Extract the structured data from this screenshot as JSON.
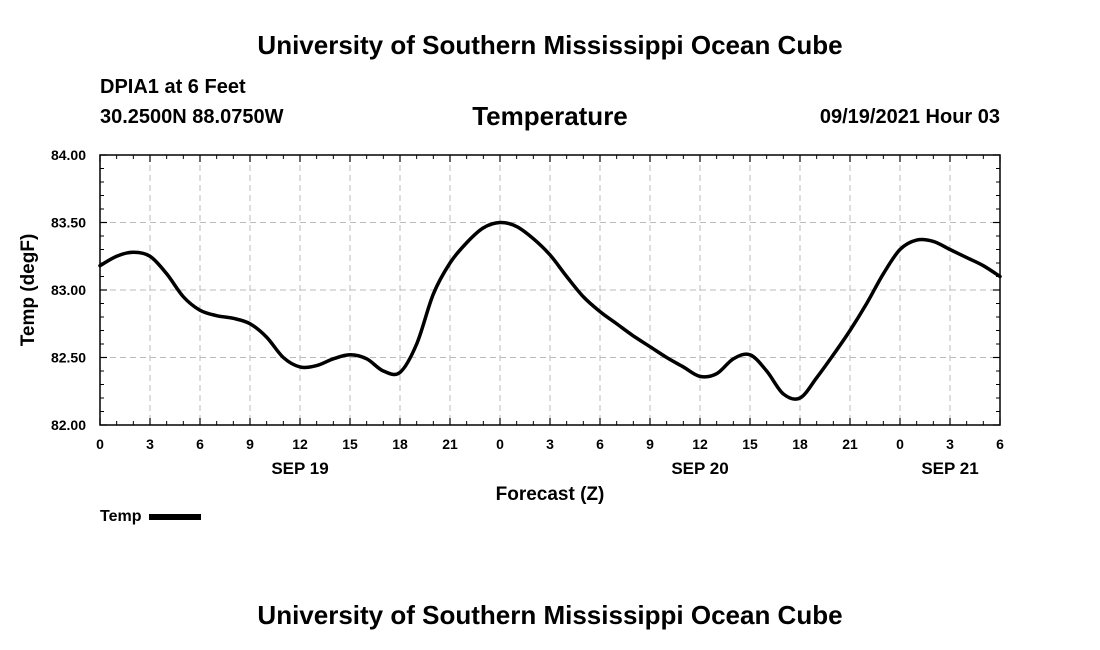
{
  "header": {
    "top_title": "University of Southern Mississippi Ocean Cube",
    "station": "DPIA1 at 6 Feet",
    "coords": "30.2500N  88.0750W",
    "datetime": "09/19/2021 Hour 03"
  },
  "footer": {
    "bottom_title": "University of Southern Mississippi Ocean Cube"
  },
  "legend": {
    "label": "Temp"
  },
  "colors": {
    "line": "#000000",
    "grid": "#bbbbbb"
  },
  "chart_data": {
    "type": "line",
    "title": "Temperature",
    "xlabel": "Forecast (Z)",
    "ylabel": "Temp (degF)",
    "xlim": [
      0,
      54
    ],
    "ylim": [
      82.0,
      84.0
    ],
    "grid": true,
    "legend_position": "bottom-left",
    "x_ticks": [
      {
        "value": 0,
        "label": "0"
      },
      {
        "value": 3,
        "label": "3"
      },
      {
        "value": 6,
        "label": "6"
      },
      {
        "value": 9,
        "label": "9"
      },
      {
        "value": 12,
        "label": "12"
      },
      {
        "value": 15,
        "label": "15"
      },
      {
        "value": 18,
        "label": "18"
      },
      {
        "value": 21,
        "label": "21"
      },
      {
        "value": 24,
        "label": "0"
      },
      {
        "value": 27,
        "label": "3"
      },
      {
        "value": 30,
        "label": "6"
      },
      {
        "value": 33,
        "label": "9"
      },
      {
        "value": 36,
        "label": "12"
      },
      {
        "value": 39,
        "label": "15"
      },
      {
        "value": 42,
        "label": "18"
      },
      {
        "value": 45,
        "label": "21"
      },
      {
        "value": 48,
        "label": "0"
      },
      {
        "value": 51,
        "label": "3"
      },
      {
        "value": 54,
        "label": "6"
      }
    ],
    "y_ticks": [
      {
        "value": 82.0,
        "label": "82.00"
      },
      {
        "value": 82.5,
        "label": "82.50"
      },
      {
        "value": 83.0,
        "label": "83.00"
      },
      {
        "value": 83.5,
        "label": "83.50"
      },
      {
        "value": 84.0,
        "label": "84.00"
      }
    ],
    "date_labels": [
      {
        "value": 12,
        "label": "SEP 19"
      },
      {
        "value": 36,
        "label": "SEP 20"
      },
      {
        "value": 51,
        "label": "SEP 21"
      }
    ],
    "series": [
      {
        "name": "Temp",
        "x": [
          0,
          1,
          2,
          3,
          4,
          5,
          6,
          7,
          8,
          9,
          10,
          11,
          12,
          13,
          14,
          15,
          16,
          17,
          18,
          19,
          20,
          21,
          22,
          23,
          24,
          25,
          26,
          27,
          28,
          29,
          30,
          31,
          32,
          33,
          34,
          35,
          36,
          37,
          38,
          39,
          40,
          41,
          42,
          43,
          44,
          45,
          46,
          47,
          48,
          49,
          50,
          51,
          52,
          53,
          54
        ],
        "values": [
          83.18,
          83.25,
          83.28,
          83.25,
          83.12,
          82.95,
          82.85,
          82.81,
          82.79,
          82.75,
          82.65,
          82.5,
          82.43,
          82.44,
          82.49,
          82.52,
          82.49,
          82.4,
          82.39,
          82.6,
          82.97,
          83.2,
          83.35,
          83.46,
          83.5,
          83.47,
          83.38,
          83.26,
          83.1,
          82.95,
          82.84,
          82.75,
          82.66,
          82.58,
          82.5,
          82.43,
          82.36,
          82.38,
          82.49,
          82.52,
          82.4,
          82.23,
          82.2,
          82.35,
          82.52,
          82.7,
          82.9,
          83.12,
          83.3,
          83.37,
          83.36,
          83.3,
          83.24,
          83.18,
          83.1
        ]
      }
    ]
  }
}
